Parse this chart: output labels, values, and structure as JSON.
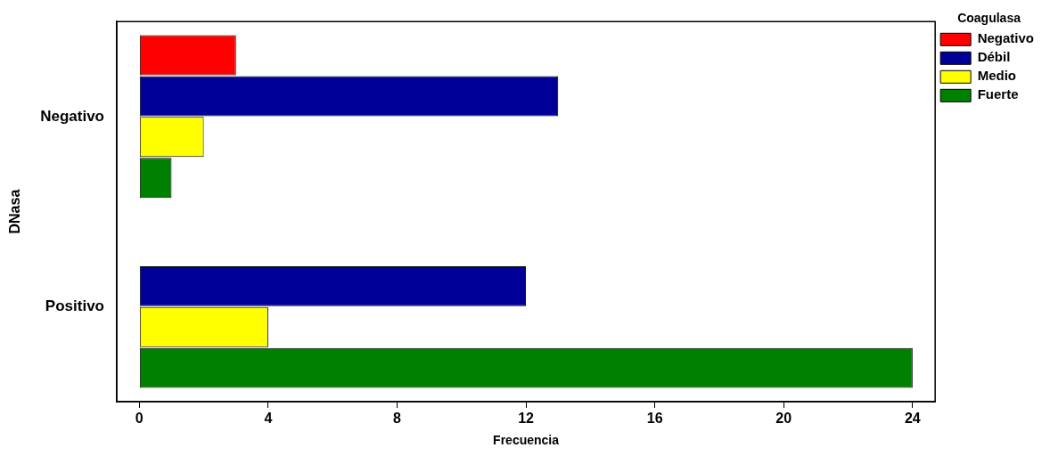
{
  "chart_data": {
    "type": "bar",
    "orientation": "horizontal",
    "xlabel": "Frecuencia",
    "ylabel": "DNasa",
    "legend_title": "Coagulasa",
    "categories": [
      "Negativo",
      "Positivo"
    ],
    "series": [
      {
        "name": "Negativo",
        "color": "#ff0000",
        "values": [
          3,
          0
        ]
      },
      {
        "name": "Débil",
        "color": "#000099",
        "values": [
          13,
          12
        ]
      },
      {
        "name": "Medio",
        "color": "#ffff00",
        "values": [
          2,
          4
        ]
      },
      {
        "name": "Fuerte",
        "color": "#008000",
        "values": [
          1,
          24
        ]
      }
    ],
    "xlim": [
      -0.7,
      24.7
    ],
    "xticks": [
      0,
      4,
      8,
      12,
      16,
      20,
      24
    ],
    "grid": false,
    "legend": "top right"
  }
}
